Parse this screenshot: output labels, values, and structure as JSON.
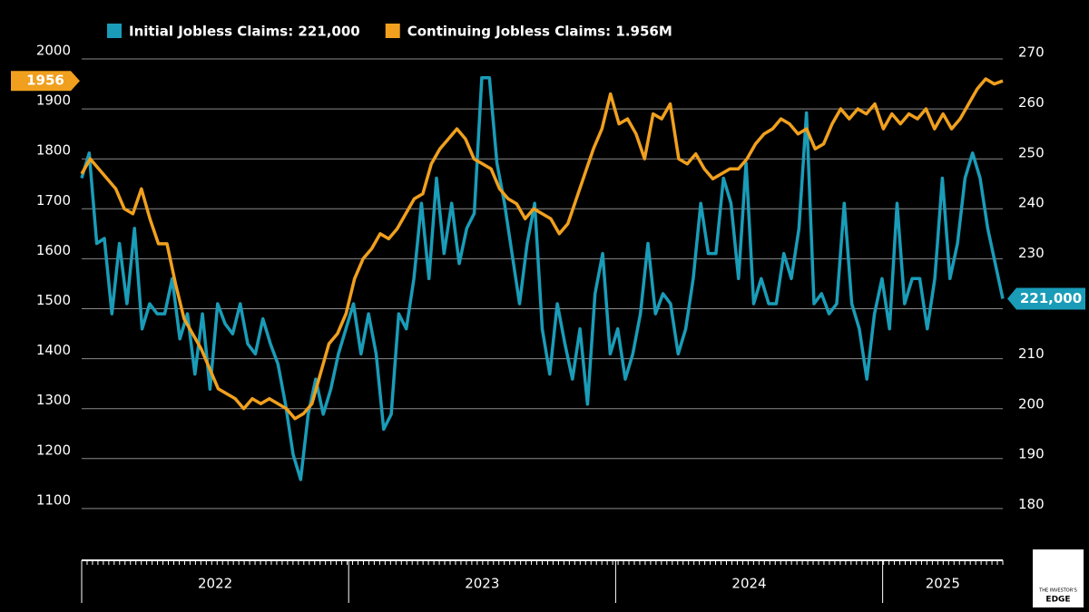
{
  "chart_data": {
    "type": "line",
    "series": [
      {
        "name": "Initial Jobless Claims: 221,000",
        "color": "#1a9cb8",
        "axis": "y2",
        "values": [
          245,
          250,
          232,
          233,
          218,
          232,
          220,
          235,
          215,
          220,
          218,
          218,
          225,
          213,
          218,
          206,
          218,
          203,
          220,
          216,
          214,
          220,
          212,
          210,
          217,
          212,
          208,
          200,
          190,
          185,
          198,
          205,
          198,
          203,
          210,
          215,
          220,
          210,
          218,
          210,
          195,
          198,
          218,
          215,
          225,
          240,
          225,
          245,
          230,
          240,
          228,
          235,
          238,
          265,
          265,
          248,
          240,
          230,
          220,
          232,
          240,
          215,
          206,
          220,
          212,
          205,
          215,
          200,
          222,
          230,
          210,
          215,
          205,
          210,
          218,
          232,
          218,
          222,
          220,
          210,
          215,
          225,
          240,
          230,
          230,
          245,
          240,
          225,
          248,
          220,
          225,
          220,
          220,
          230,
          225,
          235,
          258,
          220,
          222,
          218,
          220,
          240,
          220,
          215,
          205,
          218,
          225,
          215,
          240,
          220,
          225,
          225,
          215,
          225,
          245,
          225,
          232,
          245,
          250,
          245,
          235,
          228,
          221
        ],
        "value_labels": [
          null,
          null,
          null,
          null,
          null,
          null,
          null,
          null,
          null,
          null,
          null,
          null,
          null,
          null,
          null,
          null,
          null,
          null,
          null,
          null,
          null,
          null,
          null,
          null,
          null,
          null,
          null,
          null,
          null,
          null,
          null,
          null,
          null,
          null,
          null,
          null,
          null,
          null,
          null,
          null,
          null,
          null,
          null,
          null,
          null,
          null,
          null,
          null,
          null,
          null,
          null,
          null,
          null,
          null,
          null,
          null,
          null,
          null,
          null,
          null,
          null,
          null,
          null,
          null,
          null,
          null,
          null,
          null,
          null,
          null,
          null,
          null,
          null,
          null,
          null,
          null,
          null,
          null,
          null,
          null,
          null,
          null,
          null,
          null,
          null,
          null,
          null,
          null,
          null,
          null,
          null,
          null,
          null,
          null,
          null,
          null,
          null,
          null,
          null,
          null,
          null,
          null,
          null,
          null,
          null,
          null,
          null,
          null,
          null,
          null,
          null,
          null,
          null,
          null,
          null,
          null,
          null,
          null,
          null,
          null,
          null,
          null,
          "221,000"
        ]
      },
      {
        "name": "Continuing Jobless Claims: 1.956M",
        "color": "#f0a01e",
        "axis": "y",
        "values": [
          1770,
          1800,
          1780,
          1760,
          1740,
          1700,
          1690,
          1740,
          1680,
          1630,
          1630,
          1550,
          1480,
          1450,
          1420,
          1380,
          1340,
          1330,
          1320,
          1300,
          1320,
          1310,
          1320,
          1310,
          1300,
          1280,
          1290,
          1310,
          1370,
          1430,
          1450,
          1490,
          1560,
          1600,
          1620,
          1650,
          1640,
          1660,
          1690,
          1720,
          1730,
          1790,
          1820,
          1840,
          1860,
          1840,
          1800,
          1790,
          1780,
          1740,
          1720,
          1710,
          1680,
          1700,
          1690,
          1680,
          1650,
          1670,
          1720,
          1770,
          1820,
          1860,
          1930,
          1870,
          1880,
          1850,
          1800,
          1890,
          1880,
          1910,
          1800,
          1790,
          1810,
          1780,
          1760,
          1770,
          1780,
          1780,
          1800,
          1830,
          1850,
          1860,
          1880,
          1870,
          1850,
          1860,
          1820,
          1830,
          1870,
          1900,
          1880,
          1900,
          1890,
          1910,
          1860,
          1890,
          1870,
          1890,
          1880,
          1900,
          1860,
          1890,
          1860,
          1880,
          1910,
          1940,
          1960,
          1950,
          1956
        ]
      }
    ],
    "ylim": [
      1000,
      2000
    ],
    "yticks": [
      1100,
      1200,
      1300,
      1400,
      1500,
      1600,
      1700,
      1800,
      1900,
      2000
    ],
    "y2lim": [
      170,
      270
    ],
    "y2ticks": [
      180,
      190,
      200,
      210,
      220,
      230,
      240,
      250,
      260,
      270
    ],
    "xlim": [
      2022.0,
      2025.45
    ],
    "xticks": [
      {
        "value": 2022,
        "label": "2022"
      },
      {
        "value": 2023,
        "label": "2023"
      },
      {
        "value": 2024,
        "label": "2024"
      },
      {
        "value": 2025,
        "label": "2025"
      }
    ],
    "grid": true,
    "legend": "top",
    "logo_text": [
      "THE INVESTOR'S",
      "EDGE"
    ]
  }
}
